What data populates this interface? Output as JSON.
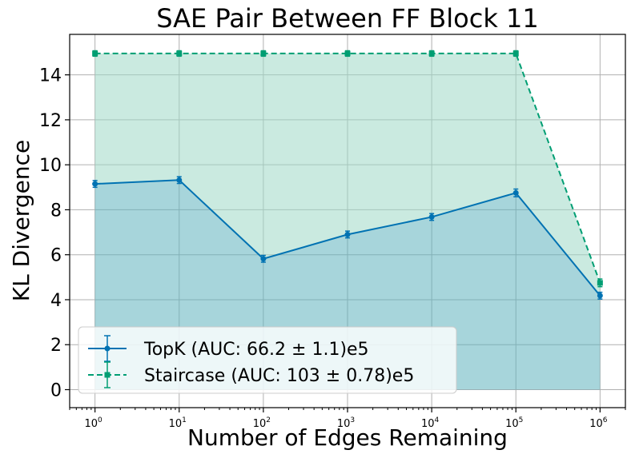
{
  "chart_data": {
    "type": "line",
    "title": "SAE Pair Between FF Block 11",
    "xlabel": "Number of Edges Remaining",
    "ylabel": "KL Divergence",
    "x_scale": "log",
    "x_tick_labels": [
      {
        "base": "10",
        "exp": "0"
      },
      {
        "base": "10",
        "exp": "1"
      },
      {
        "base": "10",
        "exp": "2"
      },
      {
        "base": "10",
        "exp": "3"
      },
      {
        "base": "10",
        "exp": "4"
      },
      {
        "base": "10",
        "exp": "5"
      },
      {
        "base": "10",
        "exp": "6"
      }
    ],
    "xlim": [
      0.5,
      2000000
    ],
    "ylim": [
      -0.8,
      15.8
    ],
    "y_ticks": [
      "0",
      "2",
      "4",
      "6",
      "8",
      "10",
      "12",
      "14"
    ],
    "grid": true,
    "legend_position": "lower-left",
    "x": [
      1,
      10,
      100,
      1000,
      10000,
      100000,
      1000000
    ],
    "series": [
      {
        "name": "TopK (AUC: 66.2 ± 1.1)e5",
        "color": "#0072b2",
        "linestyle": "solid",
        "marker": "circle",
        "values": [
          9.15,
          9.32,
          5.82,
          6.9,
          7.68,
          8.75,
          4.18
        ],
        "errors": [
          0.08,
          0.08,
          0.08,
          0.08,
          0.08,
          0.1,
          0.08
        ]
      },
      {
        "name": "Staircase (AUC: 103 ± 0.78)e5",
        "color": "#009e73",
        "linestyle": "dashed",
        "marker": "square",
        "values": [
          14.95,
          14.95,
          14.95,
          14.95,
          14.95,
          14.95,
          4.75
        ],
        "errors": [
          0.05,
          0.05,
          0.05,
          0.05,
          0.05,
          0.05,
          0.1
        ]
      }
    ],
    "fill_colors": {
      "lower": "#5fb3bd",
      "upper": "#9fd8c6"
    }
  }
}
